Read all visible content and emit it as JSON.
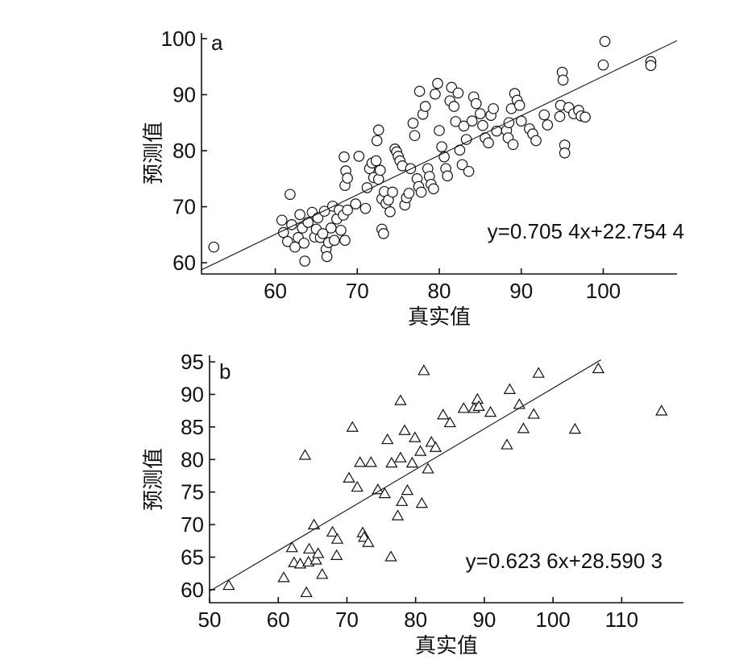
{
  "chart_data": [
    {
      "type": "scatter",
      "panel_label": "a",
      "marker": "circle",
      "xlabel": "真实值",
      "ylabel": "预测值",
      "xlim": [
        51,
        109
      ],
      "ylim": [
        58,
        101
      ],
      "xticks": [
        60,
        70,
        80,
        90,
        100
      ],
      "yticks": [
        60,
        70,
        80,
        90,
        100
      ],
      "equation": "y=0.705 4x+22.754 4",
      "fit": {
        "slope": 0.7054,
        "intercept": 22.7544
      },
      "points": [
        [
          52.5,
          62.8
        ],
        [
          60.8,
          67.6
        ],
        [
          61.0,
          65.4
        ],
        [
          61.8,
          72.2
        ],
        [
          61.5,
          63.8
        ],
        [
          62.0,
          66.8
        ],
        [
          62.4,
          62.8
        ],
        [
          62.8,
          64.5
        ],
        [
          63.0,
          68.6
        ],
        [
          63.3,
          66.2
        ],
        [
          63.5,
          63.5
        ],
        [
          63.6,
          60.3
        ],
        [
          64.0,
          67.2
        ],
        [
          64.5,
          69.0
        ],
        [
          64.8,
          64.6
        ],
        [
          65.0,
          66.0
        ],
        [
          65.2,
          68.0
        ],
        [
          65.5,
          64.5
        ],
        [
          65.8,
          65.2
        ],
        [
          66.0,
          69.2
        ],
        [
          66.2,
          62.4
        ],
        [
          66.3,
          61.1
        ],
        [
          66.5,
          63.6
        ],
        [
          66.8,
          66.2
        ],
        [
          67.0,
          70.1
        ],
        [
          67.2,
          64.0
        ],
        [
          67.5,
          67.8
        ],
        [
          67.8,
          69.4
        ],
        [
          68.0,
          65.8
        ],
        [
          68.3,
          68.5
        ],
        [
          68.5,
          64.0
        ],
        [
          68.8,
          69.4
        ],
        [
          68.4,
          78.9
        ],
        [
          68.5,
          73.8
        ],
        [
          68.6,
          76.4
        ],
        [
          68.8,
          75.1
        ],
        [
          69.8,
          70.5
        ],
        [
          70.2,
          79.0
        ],
        [
          71.0,
          69.7
        ],
        [
          71.2,
          73.4
        ],
        [
          71.5,
          76.8
        ],
        [
          71.8,
          77.8
        ],
        [
          72.0,
          75.2
        ],
        [
          72.3,
          78.2
        ],
        [
          72.6,
          74.9
        ],
        [
          72.4,
          81.8
        ],
        [
          72.6,
          83.7
        ],
        [
          72.8,
          76.5
        ],
        [
          73.0,
          71.4
        ],
        [
          73.3,
          72.7
        ],
        [
          73.0,
          66.0
        ],
        [
          73.2,
          65.2
        ],
        [
          73.5,
          70.6
        ],
        [
          73.8,
          71.2
        ],
        [
          74.0,
          69.1
        ],
        [
          74.3,
          72.6
        ],
        [
          74.6,
          80.3
        ],
        [
          74.8,
          79.8
        ],
        [
          75.0,
          79.0
        ],
        [
          75.2,
          78.2
        ],
        [
          75.5,
          77.3
        ],
        [
          75.8,
          70.3
        ],
        [
          76.0,
          71.6
        ],
        [
          76.3,
          72.4
        ],
        [
          76.5,
          76.8
        ],
        [
          76.8,
          84.9
        ],
        [
          77.0,
          82.7
        ],
        [
          77.3,
          75.0
        ],
        [
          77.5,
          73.6
        ],
        [
          77.8,
          72.6
        ],
        [
          77.6,
          90.6
        ],
        [
          78.0,
          86.5
        ],
        [
          78.3,
          87.9
        ],
        [
          78.6,
          76.8
        ],
        [
          78.8,
          75.4
        ],
        [
          79.0,
          74.0
        ],
        [
          79.3,
          73.2
        ],
        [
          79.5,
          90.1
        ],
        [
          79.8,
          92.0
        ],
        [
          80.0,
          83.6
        ],
        [
          80.3,
          80.7
        ],
        [
          80.6,
          78.9
        ],
        [
          80.8,
          76.8
        ],
        [
          81.0,
          75.5
        ],
        [
          81.3,
          88.9
        ],
        [
          81.5,
          91.3
        ],
        [
          81.8,
          87.9
        ],
        [
          82.0,
          85.2
        ],
        [
          82.3,
          90.3
        ],
        [
          82.5,
          80.1
        ],
        [
          82.8,
          77.5
        ],
        [
          83.0,
          84.4
        ],
        [
          83.3,
          82.0
        ],
        [
          83.6,
          76.3
        ],
        [
          84.0,
          85.3
        ],
        [
          84.2,
          89.6
        ],
        [
          84.5,
          88.4
        ],
        [
          85.0,
          86.6
        ],
        [
          85.3,
          84.5
        ],
        [
          85.6,
          82.3
        ],
        [
          86.0,
          81.4
        ],
        [
          86.3,
          86.3
        ],
        [
          86.6,
          87.5
        ],
        [
          87.0,
          83.5
        ],
        [
          88.2,
          83.6
        ],
        [
          88.4,
          82.3
        ],
        [
          88.5,
          85.0
        ],
        [
          88.8,
          87.5
        ],
        [
          89.0,
          81.1
        ],
        [
          89.2,
          90.2
        ],
        [
          89.5,
          89.0
        ],
        [
          89.8,
          88.1
        ],
        [
          90.0,
          85.3
        ],
        [
          91.0,
          83.9
        ],
        [
          91.4,
          83.0
        ],
        [
          91.8,
          81.8
        ],
        [
          92.8,
          86.4
        ],
        [
          93.2,
          84.6
        ],
        [
          94.7,
          86.1
        ],
        [
          94.8,
          88.1
        ],
        [
          95.0,
          94.0
        ],
        [
          95.1,
          92.6
        ],
        [
          95.3,
          81.0
        ],
        [
          95.3,
          79.6
        ],
        [
          95.8,
          87.7
        ],
        [
          96.4,
          86.6
        ],
        [
          97.0,
          87.2
        ],
        [
          97.3,
          86.2
        ],
        [
          97.8,
          86.0
        ],
        [
          100.2,
          99.5
        ],
        [
          100.0,
          95.3
        ],
        [
          105.8,
          95.9
        ],
        [
          105.8,
          95.2
        ]
      ]
    },
    {
      "type": "scatter",
      "panel_label": "b",
      "marker": "triangle",
      "xlabel": "真实值",
      "ylabel": "预测值",
      "xlim": [
        50,
        119
      ],
      "ylim": [
        58,
        96
      ],
      "xticks": [
        50,
        60,
        70,
        80,
        90,
        100,
        110
      ],
      "yticks": [
        60,
        65,
        70,
        75,
        80,
        85,
        90,
        95
      ],
      "equation": "y=0.623 6x+28.590 3",
      "fit": {
        "slope": 0.6236,
        "intercept": 28.5903
      },
      "points": [
        [
          52.8,
          60.6
        ],
        [
          60.8,
          61.8
        ],
        [
          62.0,
          66.4
        ],
        [
          62.3,
          64.1
        ],
        [
          63.2,
          63.9
        ],
        [
          63.9,
          80.6
        ],
        [
          64.1,
          59.5
        ],
        [
          64.4,
          64.2
        ],
        [
          64.5,
          66.2
        ],
        [
          65.2,
          69.9
        ],
        [
          65.5,
          64.5
        ],
        [
          65.8,
          65.5
        ],
        [
          66.4,
          62.3
        ],
        [
          67.9,
          68.8
        ],
        [
          68.5,
          65.2
        ],
        [
          68.6,
          67.7
        ],
        [
          70.3,
          77.1
        ],
        [
          70.8,
          84.9
        ],
        [
          71.5,
          75.7
        ],
        [
          71.9,
          79.5
        ],
        [
          72.3,
          68.7
        ],
        [
          72.5,
          68.0
        ],
        [
          73.1,
          67.2
        ],
        [
          73.5,
          79.5
        ],
        [
          74.5,
          75.3
        ],
        [
          75.5,
          74.7
        ],
        [
          75.9,
          83.0
        ],
        [
          76.4,
          65.0
        ],
        [
          76.5,
          79.4
        ],
        [
          77.4,
          71.3
        ],
        [
          77.8,
          80.2
        ],
        [
          77.8,
          89.0
        ],
        [
          78.0,
          73.5
        ],
        [
          78.4,
          84.4
        ],
        [
          78.8,
          75.2
        ],
        [
          79.5,
          79.4
        ],
        [
          79.9,
          83.3
        ],
        [
          80.7,
          81.2
        ],
        [
          80.9,
          73.2
        ],
        [
          81.2,
          93.6
        ],
        [
          81.8,
          78.5
        ],
        [
          82.3,
          82.6
        ],
        [
          82.9,
          81.8
        ],
        [
          84.0,
          86.8
        ],
        [
          85.0,
          85.6
        ],
        [
          87.0,
          87.8
        ],
        [
          88.5,
          87.8
        ],
        [
          89.0,
          89.2
        ],
        [
          89.2,
          88.1
        ],
        [
          90.9,
          87.2
        ],
        [
          93.3,
          82.2
        ],
        [
          93.7,
          90.7
        ],
        [
          95.1,
          88.4
        ],
        [
          95.7,
          84.7
        ],
        [
          97.2,
          86.9
        ],
        [
          97.9,
          93.2
        ],
        [
          103.2,
          84.6
        ],
        [
          106.6,
          93.9
        ],
        [
          115.8,
          87.4
        ]
      ]
    }
  ]
}
